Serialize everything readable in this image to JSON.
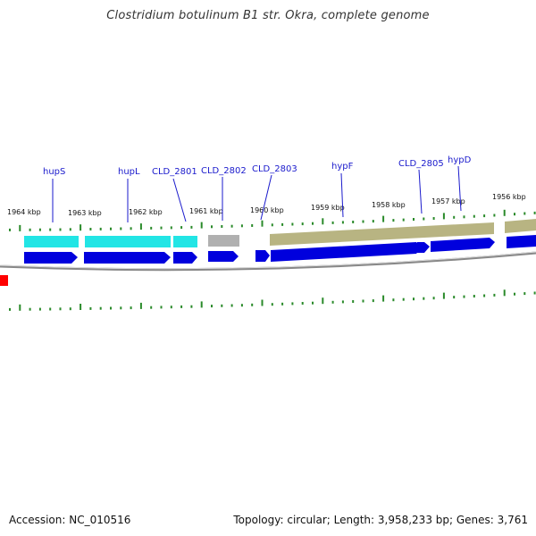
{
  "title": "Clostridium botulinum B1 str. Okra, complete genome",
  "footer": {
    "accession": "Accession: NC_010516",
    "stats": "Topology: circular; Length: 3,958,233 bp; Genes: 3,761"
  },
  "colors": {
    "cds": "#0000dd",
    "hydrogenase_feature": "#22e5e5",
    "gray_feature": "#b0b0b0",
    "olive_feature": "#b8b482",
    "backbone": "#888888",
    "tick": "#2a8a2a",
    "label": "#1a1acc",
    "marker": "#ff0000"
  },
  "kbp_labels": [
    "1964 kbp",
    "1963 kbp",
    "1962 kbp",
    "1961 kbp",
    "1960 kbp",
    "1959 kbp",
    "1958 kbp",
    "1957 kbp",
    "1956 kbp"
  ],
  "gene_labels": [
    "hupS",
    "hupL",
    "CLD_2801",
    "CLD_2802",
    "CLD_2803",
    "hypF",
    "CLD_2805",
    "hypD"
  ]
}
